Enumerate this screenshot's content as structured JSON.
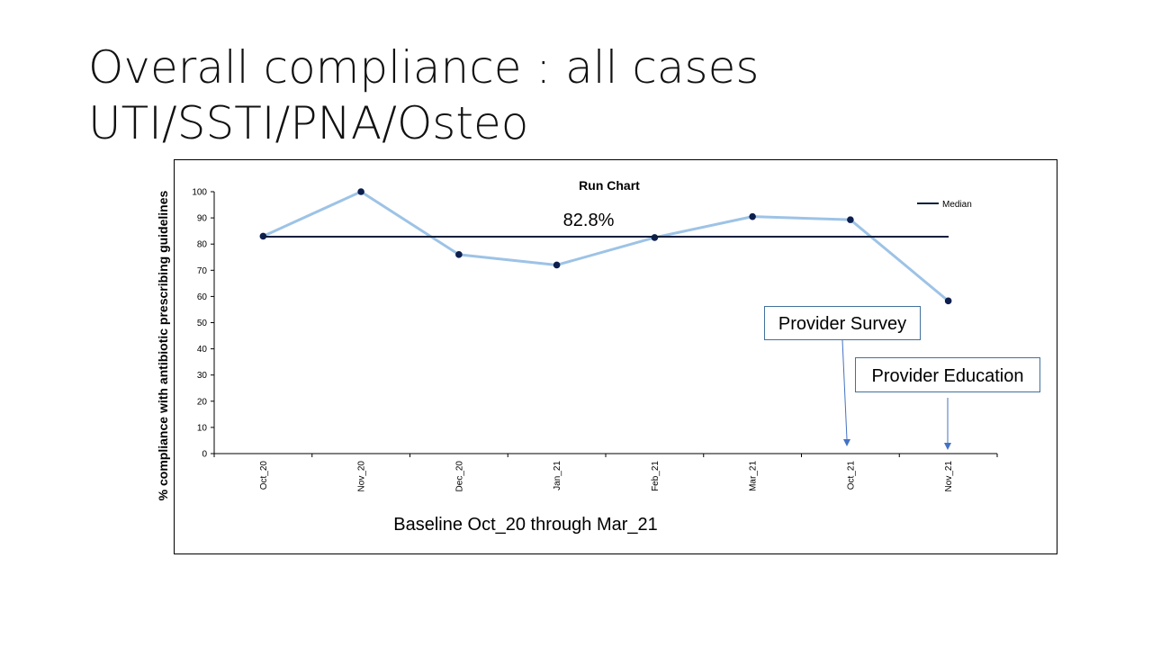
{
  "slide": {
    "title_line1": "Overall compliance : all cases",
    "title_line2": "UTI/SSTI/PNA/Osteo"
  },
  "chart_data": {
    "type": "line",
    "title": "Run Chart",
    "ylabel": "% compliance with antibiotic prescribing guidelines",
    "xlabel": "",
    "categories": [
      "Oct_20",
      "Nov_20",
      "Dec_20",
      "Jan_21",
      "Feb_21",
      "Mar_21",
      "Oct_21",
      "Nov_21"
    ],
    "series": [
      {
        "values": [
          83,
          100,
          76,
          72,
          82.5,
          90.5,
          89.3,
          58.3
        ],
        "color": "#9dc3e6",
        "marker_color": "#0d1f4f"
      }
    ],
    "median": {
      "name": "Median",
      "value": 82.8,
      "label": "82.8%",
      "color": "#0d1f3c"
    },
    "ylim": [
      0,
      100
    ],
    "yticks": [
      0,
      10,
      20,
      30,
      40,
      50,
      60,
      70,
      80,
      90,
      100
    ],
    "legend_position": "top-right",
    "grid": false,
    "annotations": [
      {
        "text": "Provider Survey",
        "points_to": "Oct_21"
      },
      {
        "text": "Provider Education",
        "points_to": "Nov_21"
      }
    ],
    "footnote": "Baseline Oct_20 through Mar_21",
    "arrow_color": "#4472c4",
    "box_border_color": "#41719c"
  }
}
